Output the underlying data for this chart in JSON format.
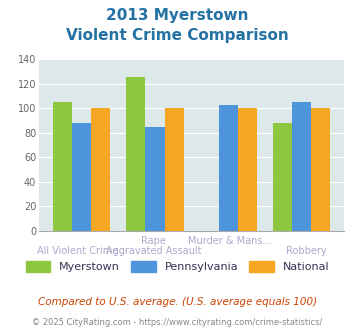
{
  "title_line1": "2013 Myerstown",
  "title_line2": "Violent Crime Comparison",
  "top_labels": [
    "",
    "Rape",
    "Murder & Mans...",
    ""
  ],
  "bottom_labels": [
    "All Violent Crime",
    "Aggravated Assault",
    "",
    "Robbery"
  ],
  "myerstown": [
    105,
    126,
    0,
    88
  ],
  "pennsylvania": [
    88,
    85,
    103,
    105
  ],
  "national": [
    100,
    100,
    100,
    100
  ],
  "myerstown_color": "#8dc63f",
  "pennsylvania_color": "#4d94db",
  "national_color": "#f5a623",
  "bg_color": "#dce8ea",
  "ylim": [
    0,
    140
  ],
  "yticks": [
    0,
    20,
    40,
    60,
    80,
    100,
    120,
    140
  ],
  "grid_color": "#ffffff",
  "title_color": "#2471a3",
  "tick_color": "#666666",
  "label_color": "#aaaacc",
  "legend_label1": "Myerstown",
  "legend_label2": "Pennsylvania",
  "legend_label3": "National",
  "legend_text_color": "#333355",
  "footer1": "Compared to U.S. average. (U.S. average equals 100)",
  "footer2": "© 2025 CityRating.com - https://www.cityrating.com/crime-statistics/",
  "footer1_color": "#cc4400",
  "footer2_color": "#888888"
}
